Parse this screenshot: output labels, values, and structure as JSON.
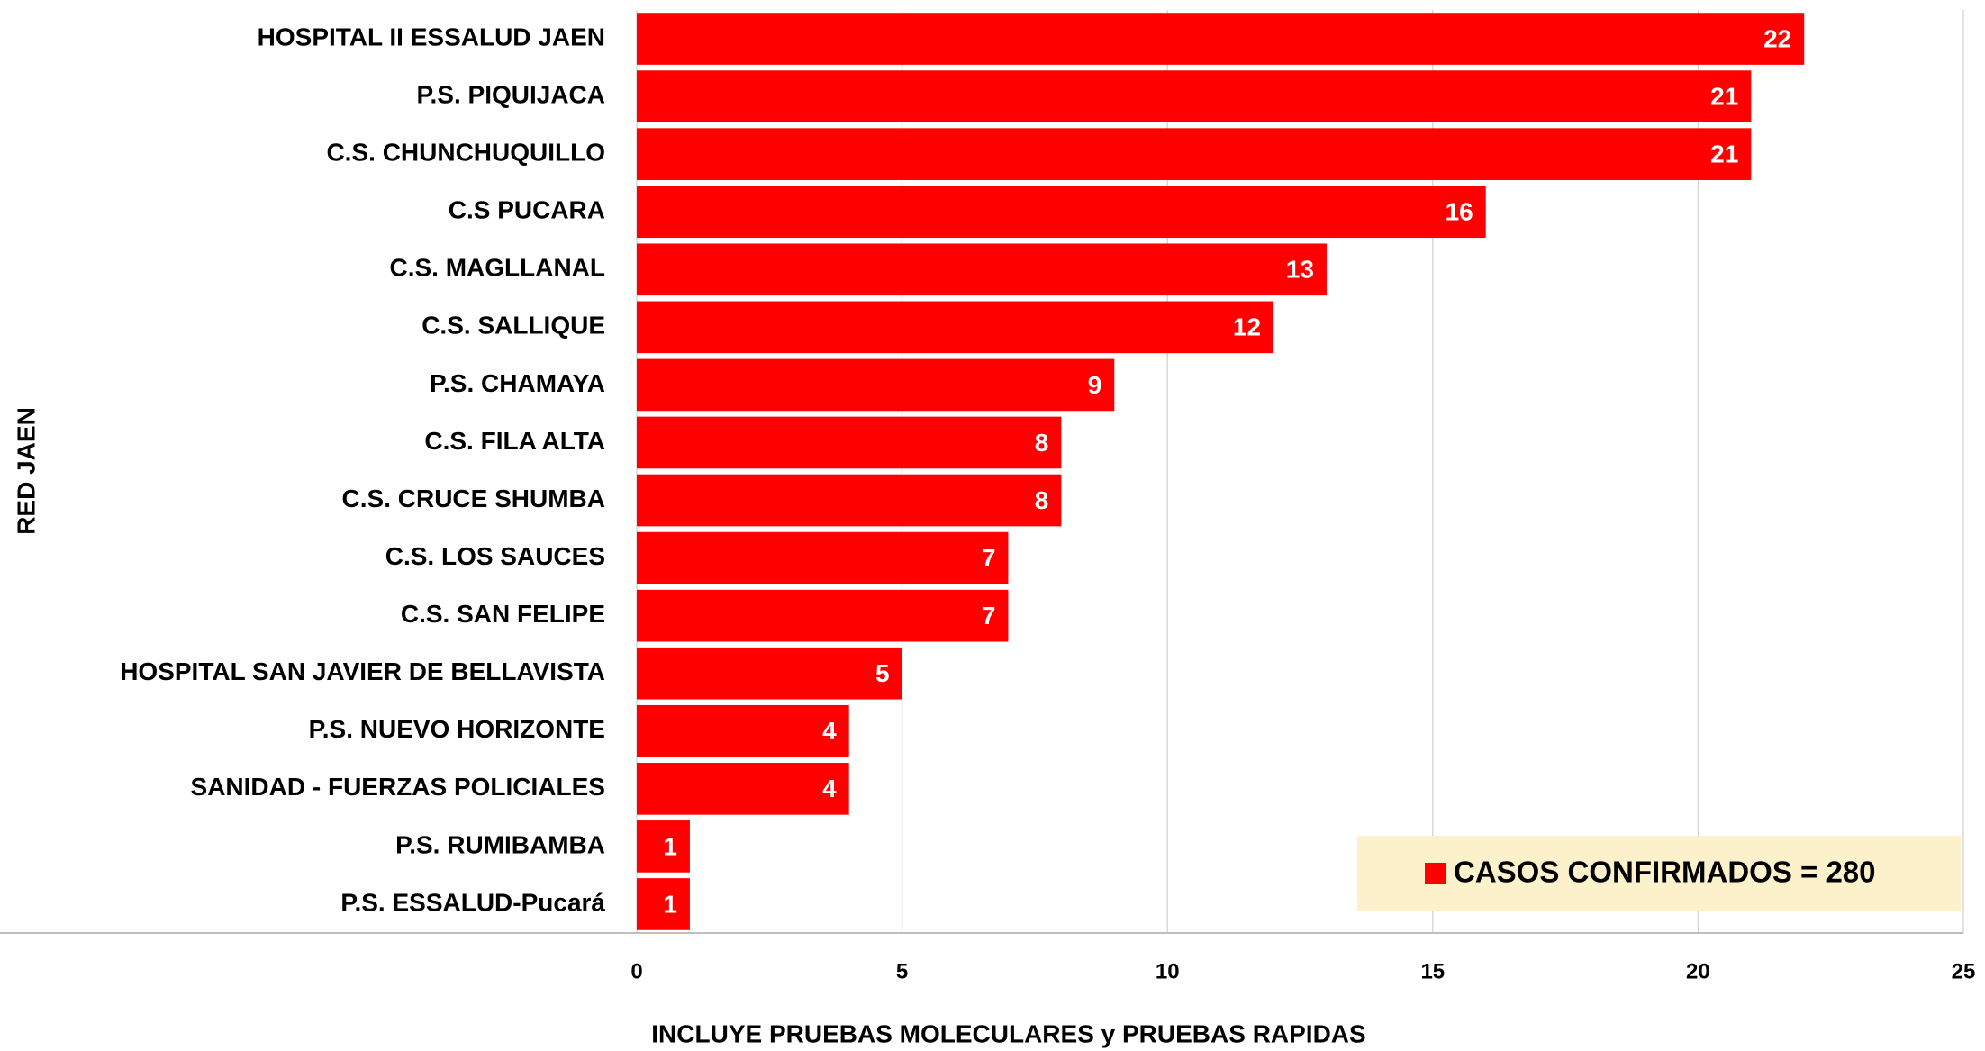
{
  "chart_data": {
    "type": "hbar",
    "y_label": "RED JAEN",
    "x_label": "INCLUYE PRUEBAS MOLECULARES y PRUEBAS RAPIDAS",
    "categories": [
      "HOSPITAL II ESSALUD JAEN",
      "P.S. PIQUIJACA",
      "C.S. CHUNCHUQUILLO",
      "C.S PUCARA",
      "C.S. MAGLLANAL",
      "C.S. SALLIQUE",
      "P.S. CHAMAYA",
      "C.S. FILA ALTA",
      "C.S. CRUCE SHUMBA",
      "C.S. LOS SAUCES",
      "C.S. SAN FELIPE",
      "HOSPITAL SAN JAVIER DE BELLAVISTA",
      "P.S. NUEVO HORIZONTE",
      "SANIDAD - FUERZAS POLICIALES",
      "P.S. RUMIBAMBA",
      "P.S. ESSALUD-Pucará"
    ],
    "series": [
      {
        "name": "CASOS CONFIRMADOS = 280",
        "color": "#ff0000",
        "values": [
          22,
          21,
          21,
          16,
          13,
          12,
          9,
          8,
          8,
          7,
          7,
          5,
          4,
          4,
          1,
          1
        ]
      }
    ],
    "xlim": [
      0,
      25
    ],
    "xticks": [
      0,
      5,
      10,
      15,
      20,
      25
    ],
    "grid": true,
    "legend": "lower right"
  }
}
